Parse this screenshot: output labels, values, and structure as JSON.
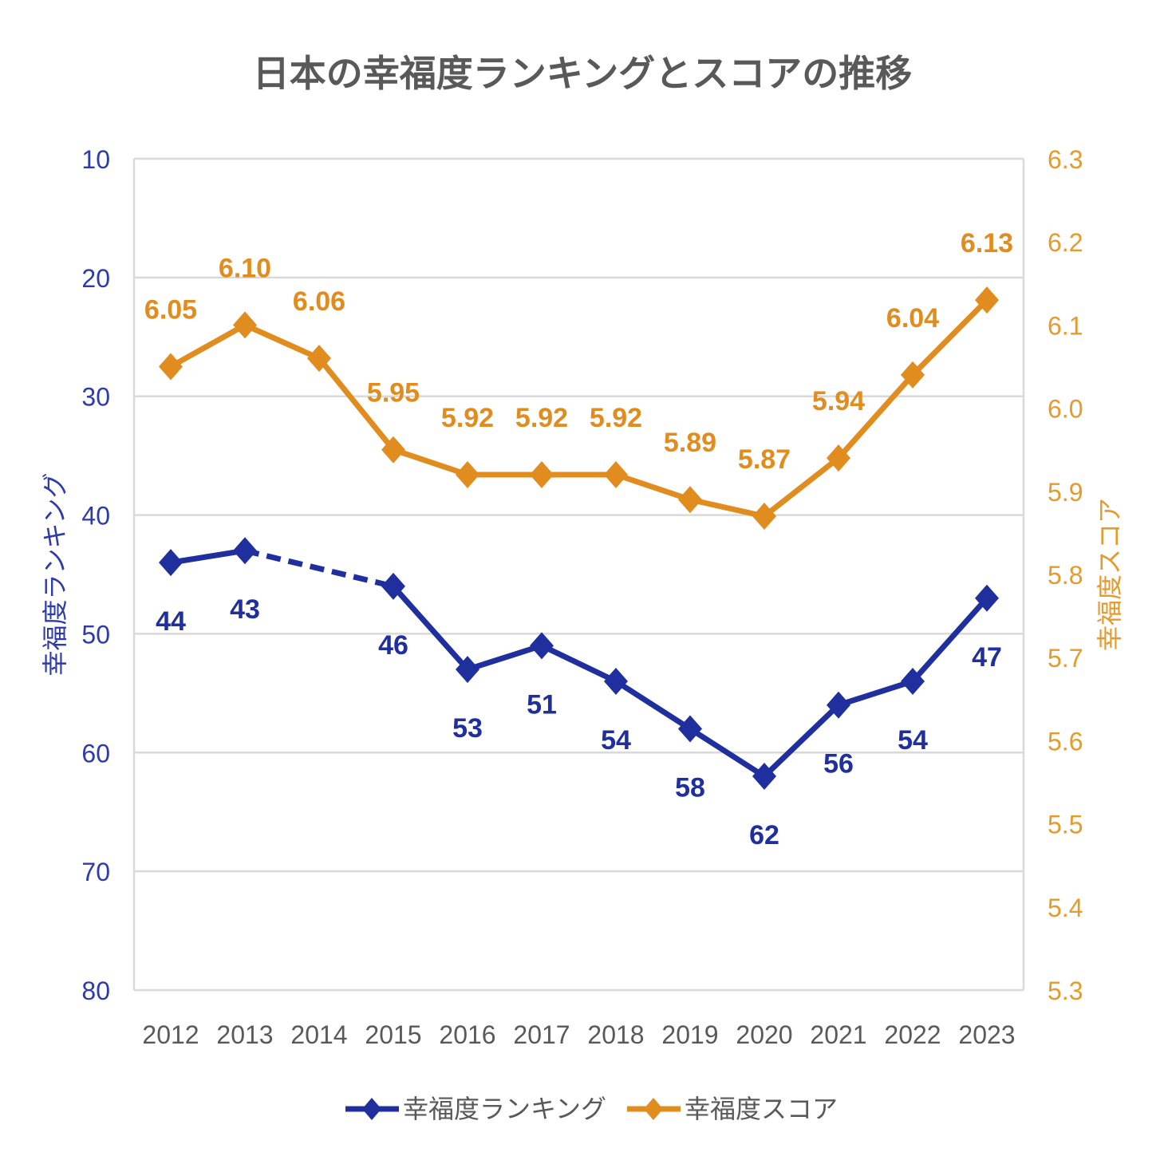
{
  "chart_data": {
    "type": "line",
    "title": "日本の幸福度ランキングとスコアの推移",
    "categories": [
      "2012",
      "2013",
      "2014",
      "2015",
      "2016",
      "2017",
      "2018",
      "2019",
      "2020",
      "2021",
      "2022",
      "2023"
    ],
    "series": [
      {
        "name": "幸福度ランキング",
        "axis": "left",
        "color": "#1F2F9E",
        "values": [
          44,
          43,
          null,
          46,
          53,
          51,
          54,
          58,
          62,
          56,
          54,
          47
        ],
        "labels": [
          "44",
          "43",
          "",
          "46",
          "53",
          "51",
          "54",
          "58",
          "62",
          "56",
          "54",
          "47"
        ],
        "gap_style": "dashed"
      },
      {
        "name": "幸福度スコア",
        "axis": "right",
        "color": "#E08C1E",
        "values": [
          6.05,
          6.1,
          6.06,
          5.95,
          5.92,
          5.92,
          5.92,
          5.89,
          5.87,
          5.94,
          6.04,
          6.13
        ],
        "labels": [
          "6.05",
          "6.10",
          "6.06",
          "5.95",
          "5.92",
          "5.92",
          "5.92",
          "5.89",
          "5.87",
          "5.94",
          "6.04",
          "6.13"
        ]
      }
    ],
    "y_left": {
      "label": "幸福度ランキング",
      "min": 10,
      "max": 80,
      "reversed": true,
      "ticks": [
        "10",
        "20",
        "30",
        "40",
        "50",
        "60",
        "70",
        "80"
      ],
      "color": "#2E3BAA"
    },
    "y_right": {
      "label": "幸福度スコア",
      "min": 5.3,
      "max": 6.3,
      "ticks": [
        "6.3",
        "6.2",
        "6.1",
        "6.0",
        "5.9",
        "5.8",
        "5.7",
        "5.6",
        "5.5",
        "5.4",
        "5.3"
      ],
      "color": "#E59A2E"
    },
    "grid": true,
    "legend": "bottom",
    "marker": "diamond"
  }
}
